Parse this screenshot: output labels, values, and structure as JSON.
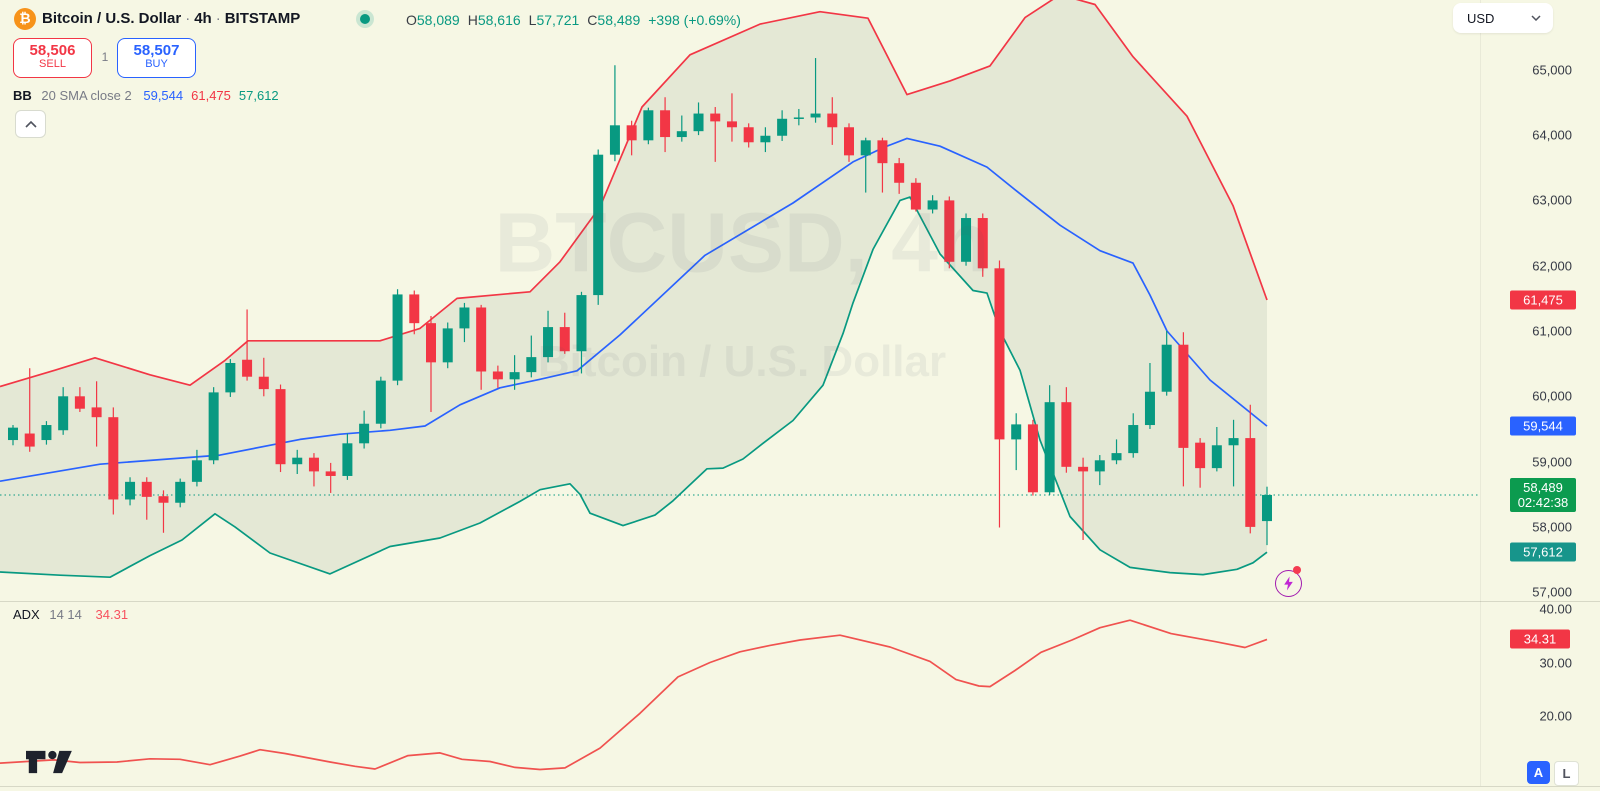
{
  "header": {
    "symbol_title": "Bitcoin / U.S. Dollar",
    "separator": "·",
    "interval": "4h",
    "exchange": "BITSTAMP",
    "ohlc": {
      "items": [
        {
          "label": "O",
          "value": "58,089"
        },
        {
          "label": "H",
          "value": "58,616"
        },
        {
          "label": "L",
          "value": "57,721"
        },
        {
          "label": "C",
          "value": "58,489"
        }
      ],
      "change": "+398 (+0.69%)"
    },
    "sell_button": {
      "price": "58,506",
      "label": "SELL"
    },
    "spread": "1",
    "buy_button": {
      "price": "58,507",
      "label": "BUY"
    },
    "currency_button": {
      "label": "USD"
    }
  },
  "indicators": {
    "bb": {
      "name": "BB",
      "params": "20 SMA close 2",
      "values": [
        {
          "text": "59,544",
          "color": "#2962ff"
        },
        {
          "text": "61,475",
          "color": "#f23645"
        },
        {
          "text": "57,612",
          "color": "#089981"
        }
      ]
    },
    "adx": {
      "name": "ADX",
      "params": "14 14",
      "value": "34.31"
    }
  },
  "watermark": {
    "line1": "BTCUSD, 4h",
    "line2": "Bitcoin / U.S. Dollar"
  },
  "price_axis": {
    "ticks": [
      {
        "label": "65,000",
        "price": 65000
      },
      {
        "label": "64,000",
        "price": 64000
      },
      {
        "label": "63,000",
        "price": 63000
      },
      {
        "label": "62,000",
        "price": 62000
      },
      {
        "label": "61,000",
        "price": 61000
      },
      {
        "label": "60,000",
        "price": 60000
      },
      {
        "label": "59,000",
        "price": 59000
      },
      {
        "label": "58,000",
        "price": 58000
      },
      {
        "label": "57,000",
        "price": 57000
      }
    ],
    "badges": [
      {
        "text": "61,475",
        "price": 61475,
        "color": "#f23645"
      },
      {
        "text": "59,544",
        "price": 59544,
        "color": "#2962ff"
      },
      {
        "text": "58,489",
        "price": 58489,
        "color": "#0c9b4f",
        "countdown": "02:42:38"
      },
      {
        "text": "57,612",
        "price": 57612,
        "color": "#17958b"
      }
    ]
  },
  "adx_axis": {
    "ticks": [
      {
        "label": "40.00",
        "value": 40
      },
      {
        "label": "30.00",
        "value": 30
      },
      {
        "label": "20.00",
        "value": 20
      }
    ],
    "badge": {
      "text": "34.31",
      "value": 34.31,
      "color": "#f23645"
    }
  },
  "toggles": {
    "auto_label": "A",
    "log_label": "L"
  },
  "colors": {
    "up": "#089981",
    "down": "#f23645",
    "middle_band": "#2962ff",
    "upper_band": "#f23645",
    "lower_band": "#089981",
    "adx_line": "#f0524f",
    "band_fill": "rgba(70,110,90,0.10)",
    "last_price_line": "#089981"
  },
  "chart_data": {
    "type": "candlestick",
    "title": "BTCUSD 4h with Bollinger Bands (20,2) and ADX (14,14)",
    "price_axis_range_approx": [
      56850,
      66075
    ],
    "adx_axis_range_approx": [
      7,
      41.5
    ],
    "last_price": 58489,
    "candles": [
      [
        59330,
        59560,
        59250,
        59520
      ],
      [
        59430,
        60430,
        59150,
        59230
      ],
      [
        59330,
        59620,
        59260,
        59560
      ],
      [
        59480,
        60140,
        59410,
        60000
      ],
      [
        60000,
        60140,
        59760,
        59810
      ],
      [
        59830,
        60230,
        59230,
        59680
      ],
      [
        59680,
        59830,
        58190,
        58420
      ],
      [
        58420,
        58760,
        58330,
        58690
      ],
      [
        58690,
        58760,
        58110,
        58460
      ],
      [
        58470,
        58560,
        57910,
        58370
      ],
      [
        58370,
        58740,
        58300,
        58690
      ],
      [
        58690,
        59180,
        58620,
        59020
      ],
      [
        59020,
        60140,
        58960,
        60060
      ],
      [
        60060,
        60570,
        59990,
        60510
      ],
      [
        60560,
        61330,
        60240,
        60300
      ],
      [
        60300,
        60590,
        60000,
        60110
      ],
      [
        60110,
        60180,
        58840,
        58960
      ],
      [
        58960,
        59180,
        58810,
        59060
      ],
      [
        59060,
        59130,
        58620,
        58850
      ],
      [
        58850,
        58980,
        58520,
        58780
      ],
      [
        58780,
        59430,
        58720,
        59280
      ],
      [
        59280,
        59780,
        59200,
        59580
      ],
      [
        59580,
        60300,
        59510,
        60240
      ],
      [
        60240,
        61640,
        60170,
        61560
      ],
      [
        61560,
        61620,
        60950,
        61120
      ],
      [
        61120,
        61230,
        59760,
        60520
      ],
      [
        60520,
        61130,
        60430,
        61040
      ],
      [
        61040,
        61430,
        60830,
        61360
      ],
      [
        61360,
        61400,
        60100,
        60380
      ],
      [
        60380,
        60470,
        60130,
        60260
      ],
      [
        60260,
        60630,
        60100,
        60370
      ],
      [
        60370,
        60930,
        60290,
        60600
      ],
      [
        60600,
        61310,
        60520,
        61060
      ],
      [
        61060,
        61280,
        60650,
        60690
      ],
      [
        60690,
        61600,
        60350,
        61550
      ],
      [
        61550,
        63780,
        61400,
        63700
      ],
      [
        63700,
        65070,
        63600,
        64150
      ],
      [
        64150,
        64220,
        63690,
        63920
      ],
      [
        63920,
        64420,
        63860,
        64380
      ],
      [
        64380,
        64580,
        63740,
        63970
      ],
      [
        63970,
        64300,
        63900,
        64060
      ],
      [
        64060,
        64500,
        64000,
        64330
      ],
      [
        64330,
        64430,
        63590,
        64210
      ],
      [
        64210,
        64640,
        63900,
        64120
      ],
      [
        64120,
        64180,
        63810,
        63890
      ],
      [
        63890,
        64120,
        63740,
        63990
      ],
      [
        63990,
        64380,
        63910,
        64250
      ],
      [
        64250,
        64400,
        64150,
        64270
      ],
      [
        64270,
        65180,
        64190,
        64330
      ],
      [
        64330,
        64580,
        63850,
        64120
      ],
      [
        64120,
        64180,
        63590,
        63690
      ],
      [
        63690,
        63960,
        63120,
        63920
      ],
      [
        63920,
        63960,
        63120,
        63570
      ],
      [
        63570,
        63650,
        63100,
        63270
      ],
      [
        63270,
        63340,
        62830,
        62860
      ],
      [
        62860,
        63080,
        62800,
        63000
      ],
      [
        63000,
        63060,
        61960,
        62060
      ],
      [
        62060,
        62800,
        62000,
        62730
      ],
      [
        62730,
        62800,
        61830,
        61960
      ],
      [
        61960,
        62080,
        57990,
        59340
      ],
      [
        59340,
        59740,
        58870,
        59570
      ],
      [
        59570,
        59640,
        58480,
        58530
      ],
      [
        58530,
        60170,
        58490,
        59910
      ],
      [
        59910,
        60140,
        58830,
        58920
      ],
      [
        58920,
        59060,
        57800,
        58850
      ],
      [
        58850,
        59100,
        58640,
        59020
      ],
      [
        59020,
        59340,
        58960,
        59130
      ],
      [
        59130,
        59740,
        59060,
        59560
      ],
      [
        59560,
        60510,
        59500,
        60070
      ],
      [
        60070,
        61000,
        60010,
        60790
      ],
      [
        60790,
        60980,
        58620,
        59210
      ],
      [
        59290,
        59360,
        58600,
        58900
      ],
      [
        58900,
        59530,
        58850,
        59250
      ],
      [
        59250,
        59640,
        58620,
        59360
      ],
      [
        59360,
        59870,
        57900,
        58000
      ],
      [
        58089,
        58616,
        57721,
        58489
      ]
    ],
    "bb_upper": [
      [
        0,
        60150
      ],
      [
        55,
        60400
      ],
      [
        95,
        60590
      ],
      [
        150,
        60330
      ],
      [
        190,
        60170
      ],
      [
        225,
        60550
      ],
      [
        248,
        60850
      ],
      [
        380,
        60850
      ],
      [
        420,
        61040
      ],
      [
        457,
        61500
      ],
      [
        530,
        61600
      ],
      [
        560,
        62060
      ],
      [
        600,
        62900
      ],
      [
        642,
        64430
      ],
      [
        690,
        65230
      ],
      [
        760,
        65700
      ],
      [
        820,
        65890
      ],
      [
        868,
        65790
      ],
      [
        907,
        64620
      ],
      [
        950,
        64830
      ],
      [
        990,
        65060
      ],
      [
        1025,
        65800
      ],
      [
        1060,
        66150
      ],
      [
        1095,
        66000
      ],
      [
        1133,
        65200
      ],
      [
        1187,
        64290
      ],
      [
        1233,
        62920
      ],
      [
        1267,
        61475
      ]
    ],
    "bb_middle": [
      [
        0,
        58700
      ],
      [
        100,
        58960
      ],
      [
        220,
        59100
      ],
      [
        300,
        59340
      ],
      [
        340,
        59420
      ],
      [
        390,
        59480
      ],
      [
        425,
        59545
      ],
      [
        460,
        59870
      ],
      [
        500,
        60130
      ],
      [
        540,
        60260
      ],
      [
        577,
        60390
      ],
      [
        620,
        60940
      ],
      [
        705,
        62160
      ],
      [
        793,
        62960
      ],
      [
        853,
        63590
      ],
      [
        885,
        63820
      ],
      [
        907,
        63950
      ],
      [
        940,
        63830
      ],
      [
        987,
        63510
      ],
      [
        1017,
        63140
      ],
      [
        1060,
        62620
      ],
      [
        1100,
        62230
      ],
      [
        1133,
        62040
      ],
      [
        1150,
        61550
      ],
      [
        1167,
        61000
      ],
      [
        1210,
        60250
      ],
      [
        1267,
        59544
      ]
    ],
    "bb_lower": [
      [
        0,
        57310
      ],
      [
        60,
        57260
      ],
      [
        110,
        57230
      ],
      [
        150,
        57560
      ],
      [
        182,
        57800
      ],
      [
        215,
        58200
      ],
      [
        235,
        58000
      ],
      [
        270,
        57600
      ],
      [
        330,
        57280
      ],
      [
        390,
        57700
      ],
      [
        440,
        57830
      ],
      [
        480,
        58060
      ],
      [
        520,
        58390
      ],
      [
        540,
        58570
      ],
      [
        570,
        58660
      ],
      [
        580,
        58500
      ],
      [
        590,
        58210
      ],
      [
        623,
        58020
      ],
      [
        655,
        58180
      ],
      [
        673,
        58400
      ],
      [
        707,
        58890
      ],
      [
        723,
        58900
      ],
      [
        743,
        59040
      ],
      [
        763,
        59280
      ],
      [
        793,
        59630
      ],
      [
        823,
        60170
      ],
      [
        843,
        60960
      ],
      [
        853,
        61430
      ],
      [
        873,
        62250
      ],
      [
        900,
        63000
      ],
      [
        910,
        63050
      ],
      [
        940,
        62180
      ],
      [
        973,
        61620
      ],
      [
        987,
        61580
      ],
      [
        1000,
        61000
      ],
      [
        1020,
        60400
      ],
      [
        1040,
        59330
      ],
      [
        1070,
        58160
      ],
      [
        1100,
        57650
      ],
      [
        1130,
        57380
      ],
      [
        1170,
        57300
      ],
      [
        1203,
        57270
      ],
      [
        1237,
        57350
      ],
      [
        1253,
        57450
      ],
      [
        1267,
        57612
      ]
    ],
    "adx_line": [
      [
        0,
        11.2
      ],
      [
        54,
        11.8
      ],
      [
        80,
        11.3
      ],
      [
        117,
        11.4
      ],
      [
        150,
        12.0
      ],
      [
        180,
        11.9
      ],
      [
        210,
        10.9
      ],
      [
        240,
        12.5
      ],
      [
        260,
        13.7
      ],
      [
        285,
        13.0
      ],
      [
        330,
        11.4
      ],
      [
        355,
        10.6
      ],
      [
        375,
        10.1
      ],
      [
        408,
        12.6
      ],
      [
        440,
        13.1
      ],
      [
        462,
        11.9
      ],
      [
        490,
        11.5
      ],
      [
        515,
        10.4
      ],
      [
        540,
        10.0
      ],
      [
        565,
        10.3
      ],
      [
        600,
        14.0
      ],
      [
        640,
        20.5
      ],
      [
        678,
        27.3
      ],
      [
        710,
        30.0
      ],
      [
        740,
        32.0
      ],
      [
        770,
        33.2
      ],
      [
        800,
        34.2
      ],
      [
        840,
        35.1
      ],
      [
        890,
        32.9
      ],
      [
        930,
        30.2
      ],
      [
        956,
        26.8
      ],
      [
        979,
        25.6
      ],
      [
        990,
        25.5
      ],
      [
        1015,
        28.5
      ],
      [
        1041,
        31.9
      ],
      [
        1072,
        34.2
      ],
      [
        1100,
        36.5
      ],
      [
        1130,
        37.9
      ],
      [
        1171,
        35.4
      ],
      [
        1215,
        33.9
      ],
      [
        1245,
        32.8
      ],
      [
        1267,
        34.31
      ]
    ]
  }
}
